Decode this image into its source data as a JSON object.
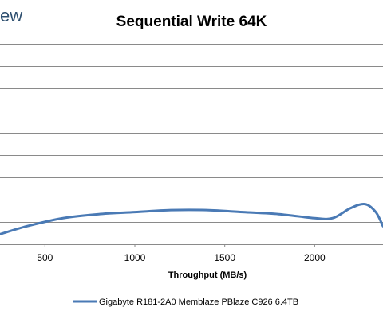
{
  "header": {
    "logo_text": "ew"
  },
  "chart_data": {
    "type": "line",
    "title": "Sequential Write 64K",
    "xlabel": "Throughput (MB/s)",
    "ylabel": "",
    "xlim": [
      250,
      2380
    ],
    "x_ticks": [
      500,
      1000,
      1500,
      2000
    ],
    "grid": true,
    "legend_position": "bottom",
    "series": [
      {
        "name": "Gigabyte R181-2A0 Memblaze PBlaze C926 6.4TB",
        "color": "#4a7ab5",
        "x": [
          250,
          400,
          600,
          800,
          1000,
          1200,
          1400,
          1600,
          1800,
          2000,
          2100,
          2200,
          2280,
          2340,
          2380
        ],
        "y": [
          0.95,
          0.91,
          0.87,
          0.85,
          0.84,
          0.83,
          0.83,
          0.84,
          0.85,
          0.87,
          0.87,
          0.82,
          0.8,
          0.84,
          0.91
        ]
      }
    ]
  }
}
